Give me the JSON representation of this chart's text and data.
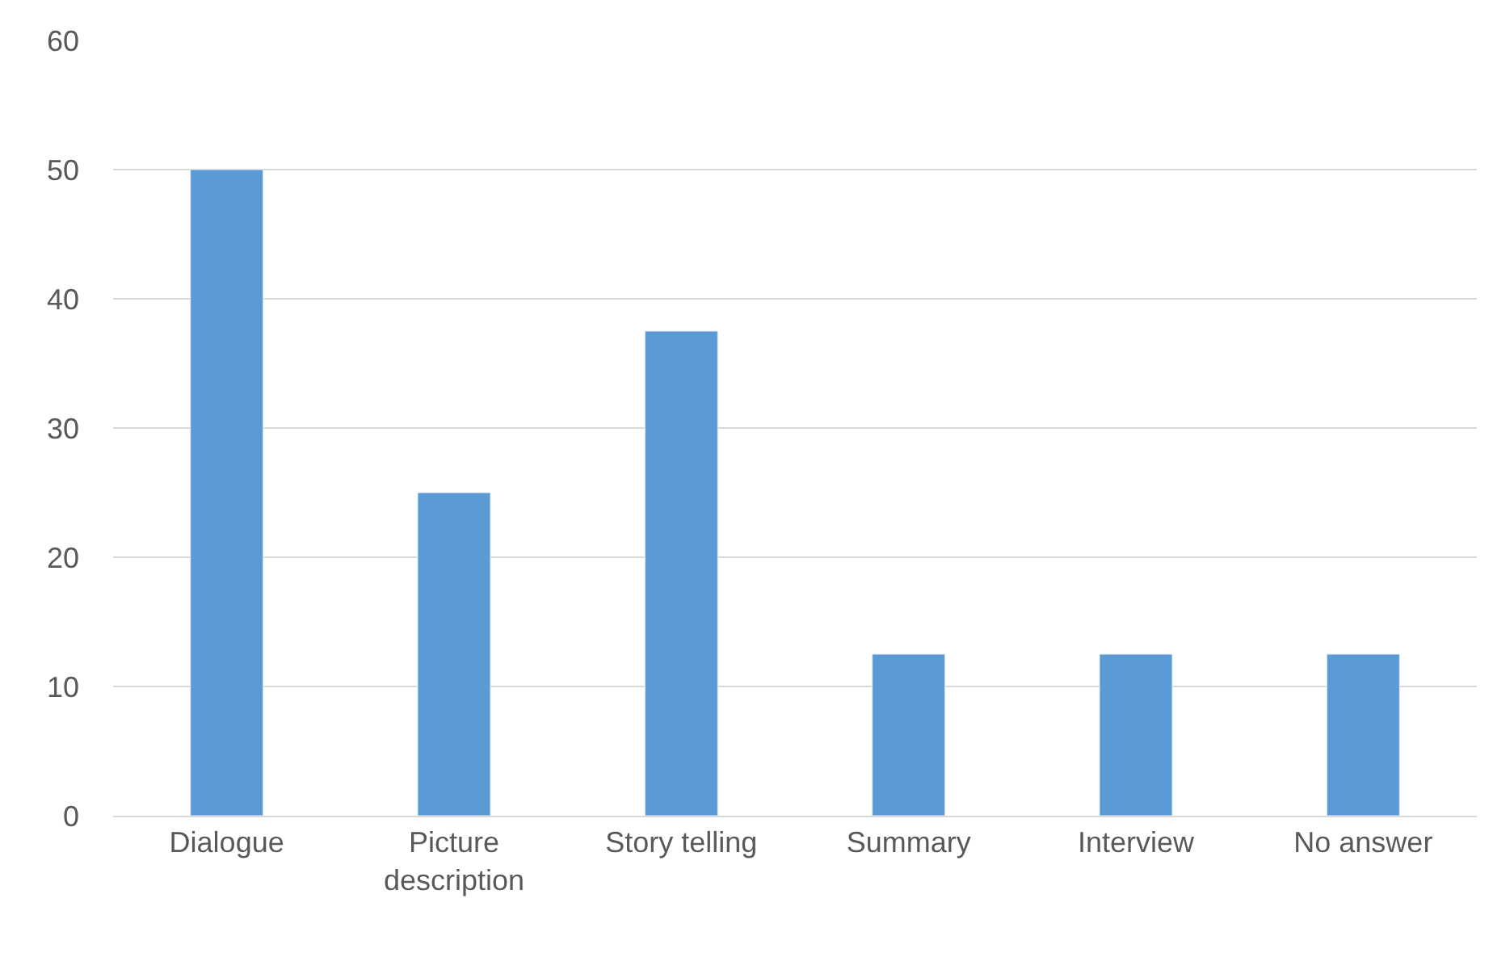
{
  "chart_data": {
    "type": "bar",
    "categories": [
      "Dialogue",
      "Picture description",
      "Story telling",
      "Summary",
      "Interview",
      "No answer"
    ],
    "values": [
      50,
      25,
      37.5,
      12.5,
      12.5,
      12.5
    ],
    "color": "#5b9bd5",
    "ylim": [
      0,
      60
    ],
    "yticks": [
      0,
      10,
      20,
      30,
      40,
      50,
      60
    ],
    "grid": "y",
    "legend": false
  }
}
